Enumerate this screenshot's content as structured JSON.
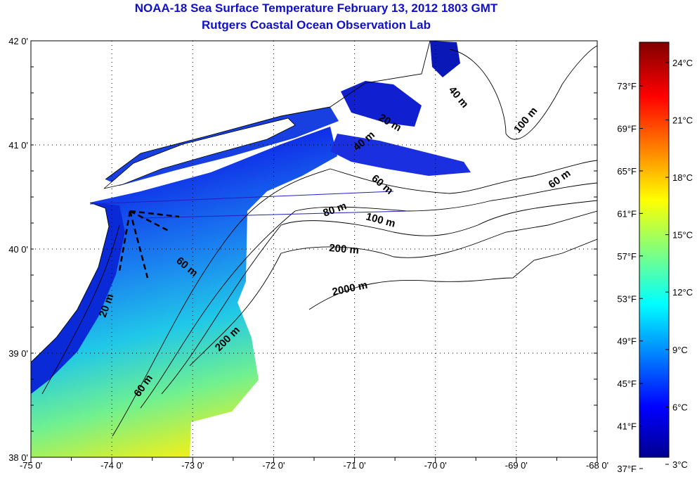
{
  "header": {
    "title_line1": "NOAA-18 Sea Surface Temperature February 13, 2012 1803 GMT",
    "title_line2": "Rutgers Coastal Ocean Observation Lab"
  },
  "map": {
    "lon_range": [
      -75,
      -68
    ],
    "lat_range": [
      38,
      42
    ],
    "lon_labels": [
      "-75 0'",
      "-74 0'",
      "-73 0'",
      "-72 0'",
      "-71 0'",
      "-70 0'",
      "-69 0'",
      "-68 0'"
    ],
    "lat_labels": [
      "42 0'",
      "41 0'",
      "40 0'",
      "39 0'",
      "38 0'"
    ],
    "contour_labels": [
      "40 m",
      "20 m",
      "40 m",
      "100 m",
      "60 m",
      "60 m",
      "80 m",
      "100 m",
      "200 m",
      "60 m",
      "2000 m",
      "20 m",
      "200 m",
      "60 m"
    ]
  },
  "colorbar": {
    "celsius_range": [
      3,
      25
    ],
    "celsius_labels": [
      "24°C",
      "21°C",
      "18°C",
      "15°C",
      "12°C",
      "9°C",
      "6°C",
      "3°C"
    ],
    "celsius_values": [
      24,
      21,
      18,
      15,
      12,
      9,
      6,
      3
    ],
    "fahrenheit_labels": [
      "73°F",
      "69°F",
      "65°F",
      "61°F",
      "57°F",
      "53°F",
      "49°F",
      "45°F",
      "41°F",
      "37°F"
    ],
    "fahrenheit_values": [
      73,
      69,
      65,
      61,
      57,
      53,
      49,
      45,
      41,
      37
    ]
  },
  "colors": {
    "title": "#1010c8",
    "ocean_deep_blue": "#0a1ad0",
    "coastline": "#000000"
  }
}
